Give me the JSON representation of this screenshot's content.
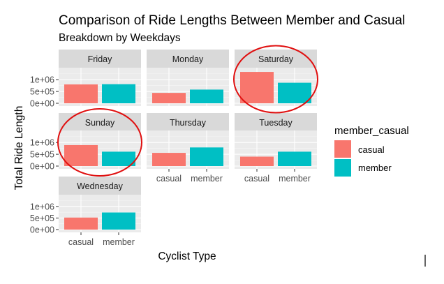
{
  "chart_data": {
    "type": "bar",
    "title": "Comparison of Ride Lengths Between Member and Casual",
    "subtitle": "Breakdown by Weekdays",
    "xlabel": "Cyclist Type",
    "ylabel": "Total Ride Length",
    "categories": [
      "casual",
      "member"
    ],
    "yticks": [
      "0e+00",
      "5e+05",
      "1e+06"
    ],
    "ylim": [
      0,
      1450000
    ],
    "grid": true,
    "legend": {
      "title": "member_casual",
      "position": "right",
      "entries": [
        {
          "label": "casual",
          "color": "#F8766D"
        },
        {
          "label": "member",
          "color": "#00BFC4"
        }
      ]
    },
    "facets": [
      {
        "label": "Friday",
        "values": [
          800000,
          810000
        ],
        "highlighted": false
      },
      {
        "label": "Monday",
        "values": [
          440000,
          580000
        ],
        "highlighted": false
      },
      {
        "label": "Saturday",
        "values": [
          1330000,
          870000
        ],
        "highlighted": true
      },
      {
        "label": "Sunday",
        "values": [
          890000,
          610000
        ],
        "highlighted": true
      },
      {
        "label": "Thursday",
        "values": [
          560000,
          790000
        ],
        "highlighted": false
      },
      {
        "label": "Tuesday",
        "values": [
          400000,
          610000
        ],
        "highlighted": false
      },
      {
        "label": "Wednesday",
        "values": [
          520000,
          740000
        ],
        "highlighted": false
      }
    ],
    "annotation_color": "#E01010"
  }
}
